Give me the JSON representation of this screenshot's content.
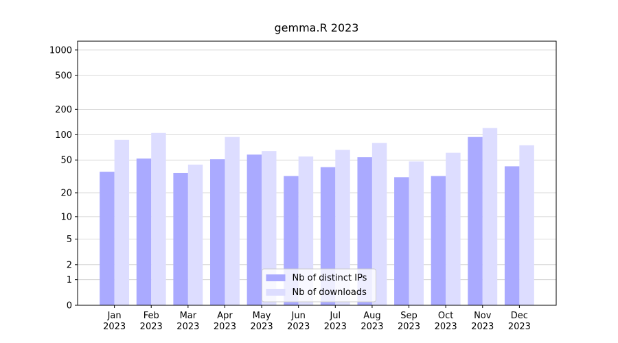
{
  "chart_data": {
    "type": "bar",
    "title": "gemma.R 2023",
    "scale": "log1p",
    "grid": true,
    "legend": "lower center",
    "categories": [
      "Jan\n2023",
      "Feb\n2023",
      "Mar\n2023",
      "Apr\n2023",
      "May\n2023",
      "Jun\n2023",
      "Jul\n2023",
      "Aug\n2023",
      "Sep\n2023",
      "Oct\n2023",
      "Nov\n2023",
      "Dec\n2023"
    ],
    "series": [
      {
        "name": "Nb of distinct IPs",
        "color": "#aaaaff",
        "values": [
          36,
          52,
          35,
          51,
          58,
          32,
          41,
          54,
          31,
          32,
          94,
          42
        ]
      },
      {
        "name": "Nb of downloads",
        "color": "#ddddff",
        "values": [
          87,
          105,
          44,
          94,
          64,
          55,
          66,
          80,
          48,
          61,
          120,
          75
        ]
      }
    ],
    "ylim": [
      0,
      1270
    ],
    "yticks": [
      0,
      1,
      2,
      5,
      10,
      20,
      50,
      100,
      200,
      500,
      1000
    ]
  }
}
